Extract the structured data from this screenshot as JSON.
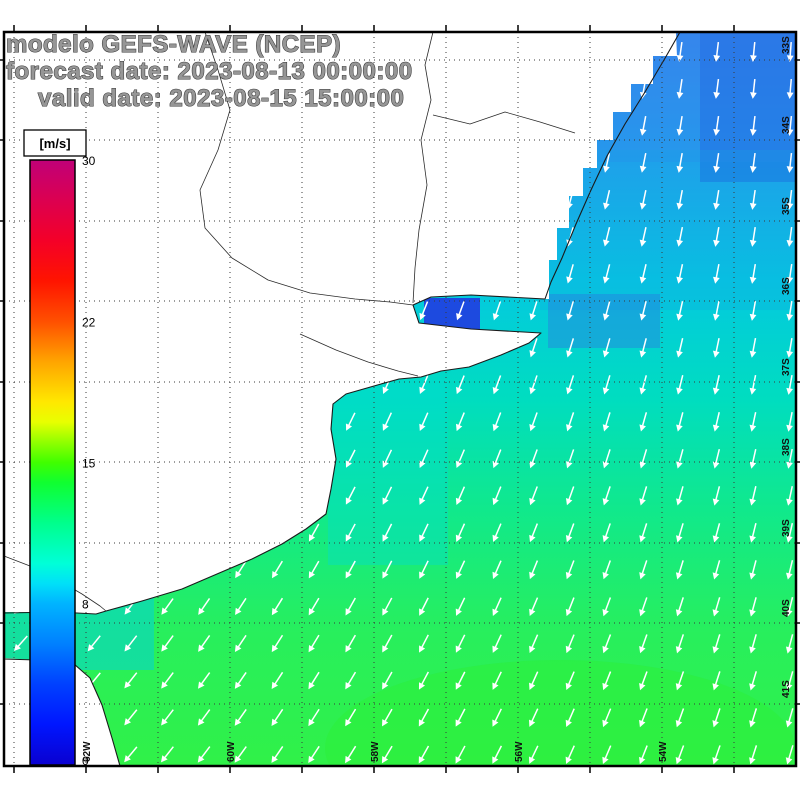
{
  "title": {
    "line1": "modelo GEFS-WAVE (NCEP)",
    "line2": "forecast date: 2023-08-13 00:00:00",
    "line3": "valid date: 2023-08-15 15:00:00"
  },
  "colorbar": {
    "units_label": "[m/s]",
    "min": 0,
    "max": 30,
    "ticks": [
      30,
      22,
      15,
      8,
      0
    ],
    "stops": [
      {
        "value": 0,
        "color": "#0a00d0"
      },
      {
        "value": 2,
        "color": "#0016ff"
      },
      {
        "value": 4,
        "color": "#0040ff"
      },
      {
        "value": 6,
        "color": "#0080ff"
      },
      {
        "value": 8,
        "color": "#00b4ff"
      },
      {
        "value": 9,
        "color": "#00e0f8"
      },
      {
        "value": 10,
        "color": "#00ffd8"
      },
      {
        "value": 12,
        "color": "#00ff8c"
      },
      {
        "value": 14,
        "color": "#10ff30"
      },
      {
        "value": 15,
        "color": "#40ff00"
      },
      {
        "value": 16,
        "color": "#90ff00"
      },
      {
        "value": 17,
        "color": "#e8ff00"
      },
      {
        "value": 18,
        "color": "#ffe800"
      },
      {
        "value": 20,
        "color": "#ffa400"
      },
      {
        "value": 22,
        "color": "#ff5000"
      },
      {
        "value": 24,
        "color": "#ff1400"
      },
      {
        "value": 26,
        "color": "#f40028"
      },
      {
        "value": 28,
        "color": "#dc0050"
      },
      {
        "value": 30,
        "color": "#c00078"
      }
    ]
  },
  "axes": {
    "latitude_labels": [
      "33S",
      "34S",
      "35S",
      "36S",
      "37S",
      "38S",
      "39S",
      "40S",
      "41S"
    ],
    "longitude_labels": [
      "62W",
      "60W",
      "58W",
      "56W",
      "54W"
    ]
  },
  "wind_field": {
    "arrow_color": "#ffffff"
  },
  "map": {
    "land_color": "#ffffff",
    "ocean_north_color": "#3a86ec",
    "ocean_mid_color": "#00ddc0",
    "ocean_south_color": "#30f148",
    "estuary_deep_color": "#2233e0"
  }
}
